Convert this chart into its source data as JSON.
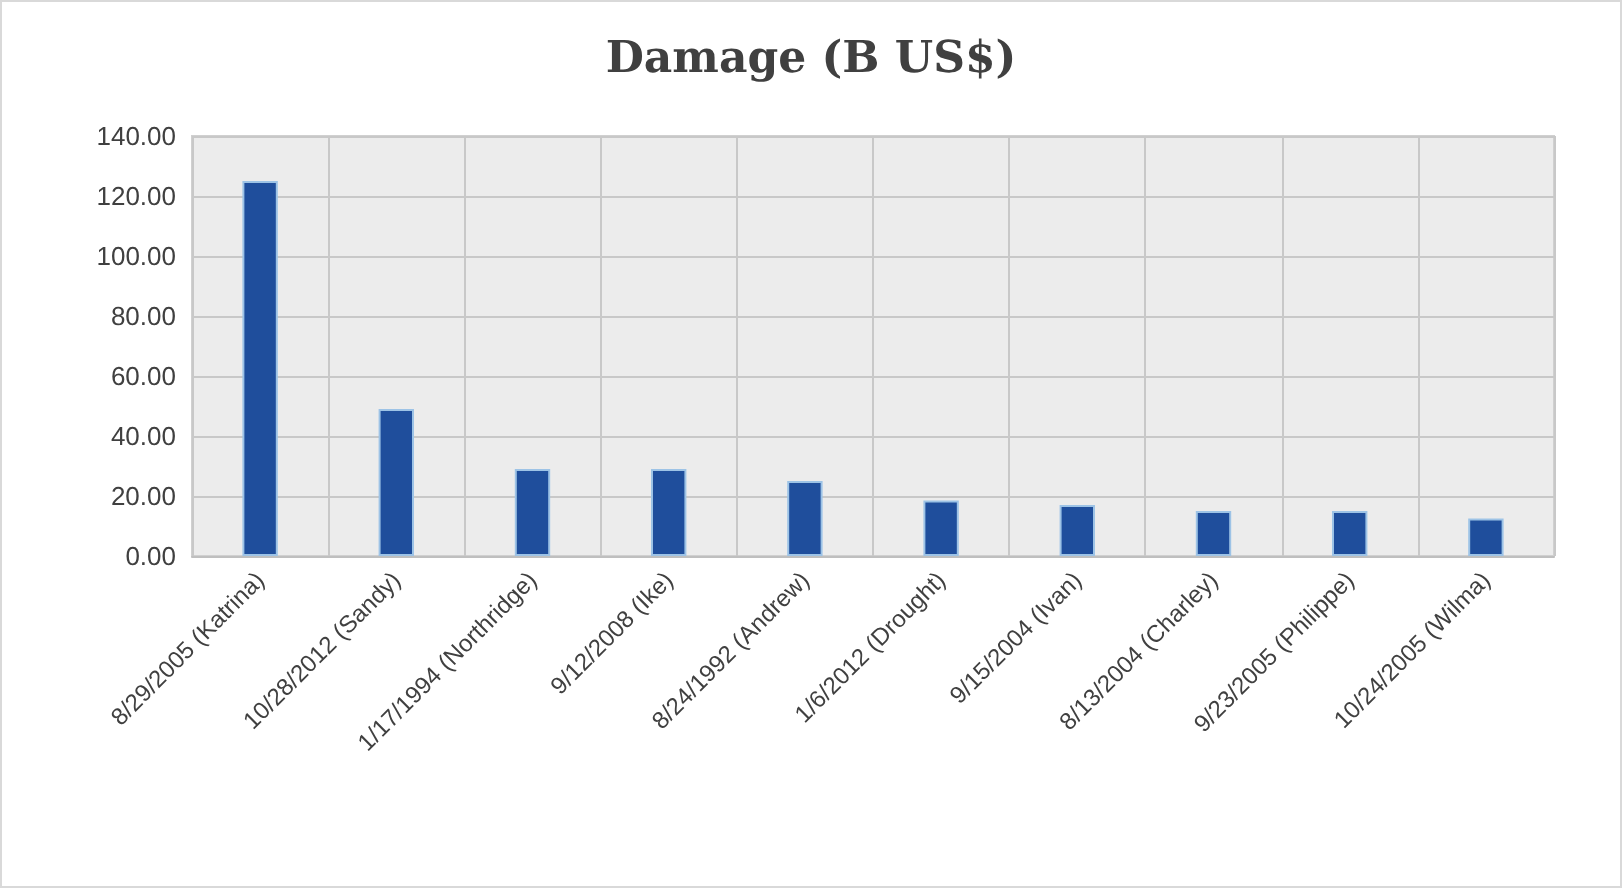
{
  "chart_data": {
    "type": "bar",
    "title": "Damage (B US$)",
    "categories": [
      "8/29/2005 (Katrina)",
      "10/28/2012 (Sandy)",
      "1/17/1994 (Northridge)",
      "9/12/2008 (Ike)",
      "8/24/1992 (Andrew)",
      "1/6/2012 (Drought)",
      "9/15/2004 (Ivan)",
      "8/13/2004 (Charley)",
      "9/23/2005 (Philippe)",
      "10/24/2005 (Wilma)"
    ],
    "values": [
      125,
      49,
      29,
      29,
      25,
      18.5,
      17,
      15,
      15,
      12.5
    ],
    "color": "#1f4e9c",
    "ylim": [
      0,
      140
    ],
    "yticks": [
      {
        "value": 0,
        "label": "0.00"
      },
      {
        "value": 20,
        "label": "20.00"
      },
      {
        "value": 40,
        "label": "40.00"
      },
      {
        "value": 60,
        "label": "60.00"
      },
      {
        "value": 80,
        "label": "80.00"
      },
      {
        "value": 100,
        "label": "100.00"
      },
      {
        "value": 120,
        "label": "120.00"
      },
      {
        "value": 140,
        "label": "140.00"
      }
    ],
    "grid": true
  }
}
